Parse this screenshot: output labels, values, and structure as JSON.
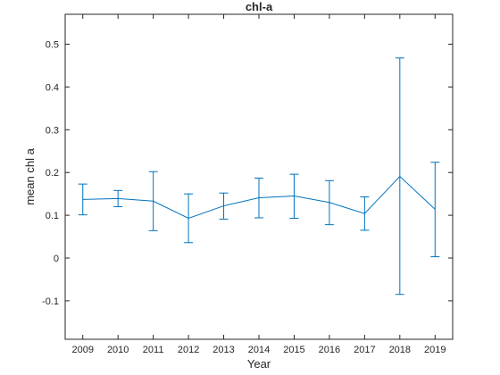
{
  "chart_data": {
    "type": "line",
    "title": "chl-a",
    "xlabel": "Year",
    "ylabel": "mean chl a",
    "x": [
      2009,
      2010,
      2011,
      2012,
      2013,
      2014,
      2015,
      2016,
      2017,
      2018,
      2019
    ],
    "xlim": [
      2008.5,
      2019.5
    ],
    "ylim": [
      -0.19,
      0.57
    ],
    "yticks": [
      -0.1,
      0,
      0.1,
      0.2,
      0.3,
      0.4,
      0.5
    ],
    "ytick_labels": [
      "-0.1",
      "0",
      "0.1",
      "0.2",
      "0.3",
      "0.4",
      "0.5"
    ],
    "xtick_labels": [
      "2009",
      "2010",
      "2011",
      "2012",
      "2013",
      "2014",
      "2015",
      "2016",
      "2017",
      "2018",
      "2019"
    ],
    "grid": false,
    "series": [
      {
        "color": "#0072BD",
        "values": [
          0.137,
          0.139,
          0.133,
          0.093,
          0.122,
          0.141,
          0.145,
          0.13,
          0.104,
          0.191,
          0.114
        ],
        "error_lower": [
          0.101,
          0.12,
          0.064,
          0.036,
          0.091,
          0.094,
          0.093,
          0.078,
          0.065,
          -0.085,
          0.003
        ],
        "error_upper": [
          0.173,
          0.158,
          0.202,
          0.15,
          0.152,
          0.187,
          0.196,
          0.181,
          0.143,
          0.468,
          0.224
        ]
      }
    ]
  }
}
